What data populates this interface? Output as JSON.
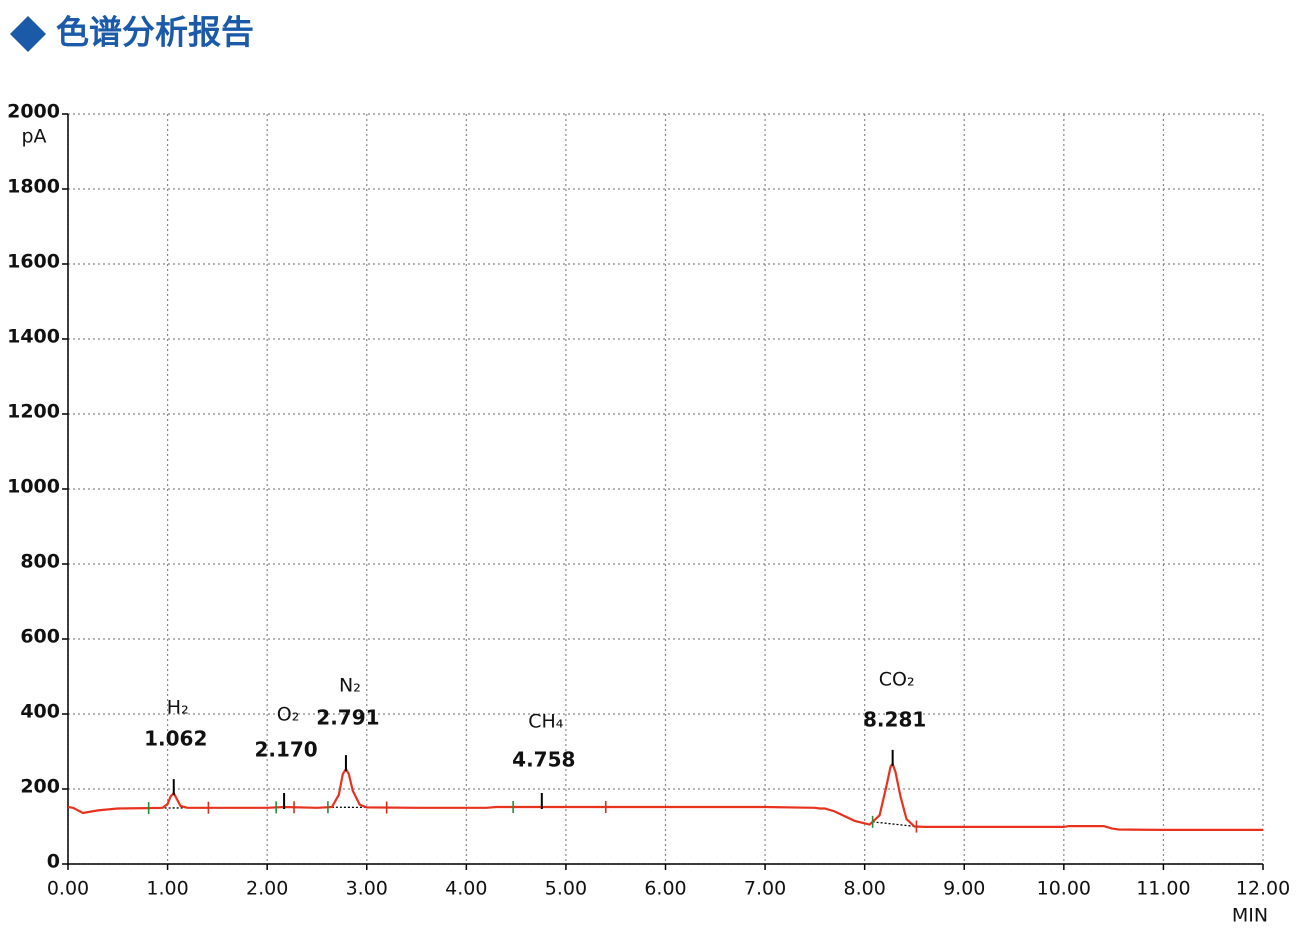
{
  "header": {
    "title": "色谱分析报告"
  },
  "chart_data": {
    "type": "line",
    "x_label": "MIN",
    "y_label": "pA",
    "xlim": [
      0,
      12
    ],
    "ylim": [
      0,
      2000
    ],
    "xticks": [
      {
        "value": 0,
        "label": "0.00"
      },
      {
        "value": 1,
        "label": "1.00"
      },
      {
        "value": 2,
        "label": "2.00"
      },
      {
        "value": 3,
        "label": "3.00"
      },
      {
        "value": 4,
        "label": "4.00"
      },
      {
        "value": 5,
        "label": "5.00"
      },
      {
        "value": 6,
        "label": "6.00"
      },
      {
        "value": 7,
        "label": "7.00"
      },
      {
        "value": 8,
        "label": "8.00"
      },
      {
        "value": 9,
        "label": "9.00"
      },
      {
        "value": 10,
        "label": "10.00"
      },
      {
        "value": 11,
        "label": "11.00"
      },
      {
        "value": 12,
        "label": "12.00"
      }
    ],
    "yticks": [
      0,
      200,
      400,
      600,
      800,
      1000,
      1200,
      1400,
      1600,
      1800,
      2000
    ],
    "grid": true,
    "series": [
      {
        "color": "#e8321e",
        "x": [
          0,
          0.05,
          0.15,
          0.3,
          0.5,
          0.8,
          0.95,
          1.0,
          1.03,
          1.062,
          1.09,
          1.13,
          1.2,
          1.5,
          2.0,
          2.17,
          2.5,
          2.65,
          2.72,
          2.76,
          2.791,
          2.82,
          2.86,
          2.93,
          3.0,
          3.5,
          4.2,
          4.3,
          5,
          6,
          7,
          7.5,
          7.55,
          7.6,
          7.7,
          7.9,
          8.05,
          8.15,
          8.22,
          8.26,
          8.281,
          8.31,
          8.36,
          8.42,
          8.5,
          8.6,
          9,
          10,
          10.05,
          10.4,
          10.48,
          10.55,
          11,
          12
        ],
        "values": [
          152,
          150,
          136,
          143,
          148,
          149,
          150,
          160,
          180,
          189,
          175,
          155,
          150,
          150,
          150,
          152,
          150,
          152,
          185,
          240,
          253,
          240,
          195,
          158,
          151,
          150,
          150,
          152,
          152,
          152,
          152,
          150,
          148,
          148,
          140,
          115,
          105,
          130,
          210,
          260,
          267,
          245,
          180,
          120,
          100,
          99,
          99,
          99,
          101,
          101,
          95,
          92,
          91,
          91
        ]
      }
    ],
    "peaks": {
      "names": [
        "H₂",
        "O₂",
        "N₂",
        "CH₄",
        "CO₂"
      ],
      "values": [
        1.062,
        2.17,
        2.791,
        4.758,
        8.281
      ],
      "value_labels": [
        "1.062",
        "2.170",
        "2.791",
        "4.758",
        "8.281"
      ],
      "starts": [
        0.81,
        2.09,
        2.61,
        4.47,
        8.08
      ],
      "ends": [
        1.41,
        2.27,
        3.2,
        5.4,
        8.52
      ]
    }
  }
}
